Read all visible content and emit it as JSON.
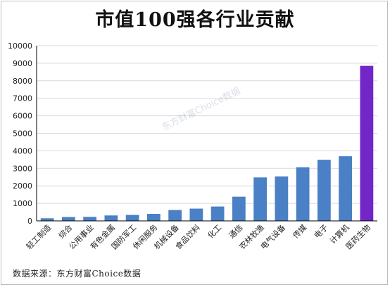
{
  "chart_data": {
    "type": "bar",
    "title": "市值100强各行业贡献",
    "source": "数据来源：东方财富Choice数据",
    "watermark": "东方财富Choice数据",
    "categories": [
      "轻工制造",
      "综合",
      "公用事业",
      "有色金属",
      "国防军工",
      "休闲服务",
      "机械设备",
      "食品饮料",
      "化工",
      "通信",
      "农林牧渔",
      "电气设备",
      "传媒",
      "电子",
      "计算机",
      "医药生物"
    ],
    "values": [
      150,
      220,
      230,
      310,
      340,
      400,
      620,
      700,
      820,
      1380,
      2480,
      2540,
      3060,
      3490,
      3690,
      8850
    ],
    "ylim": [
      0,
      10000
    ],
    "yticks": [
      0,
      1000,
      2000,
      3000,
      4000,
      5000,
      6000,
      7000,
      8000,
      9000,
      10000
    ],
    "grid": true,
    "legend": "none",
    "colors": {
      "bar": "#4a80c5",
      "highlight": "#7226c8",
      "axis": "#000000",
      "grid": "#d9d9d9"
    },
    "highlight_index": 15
  }
}
